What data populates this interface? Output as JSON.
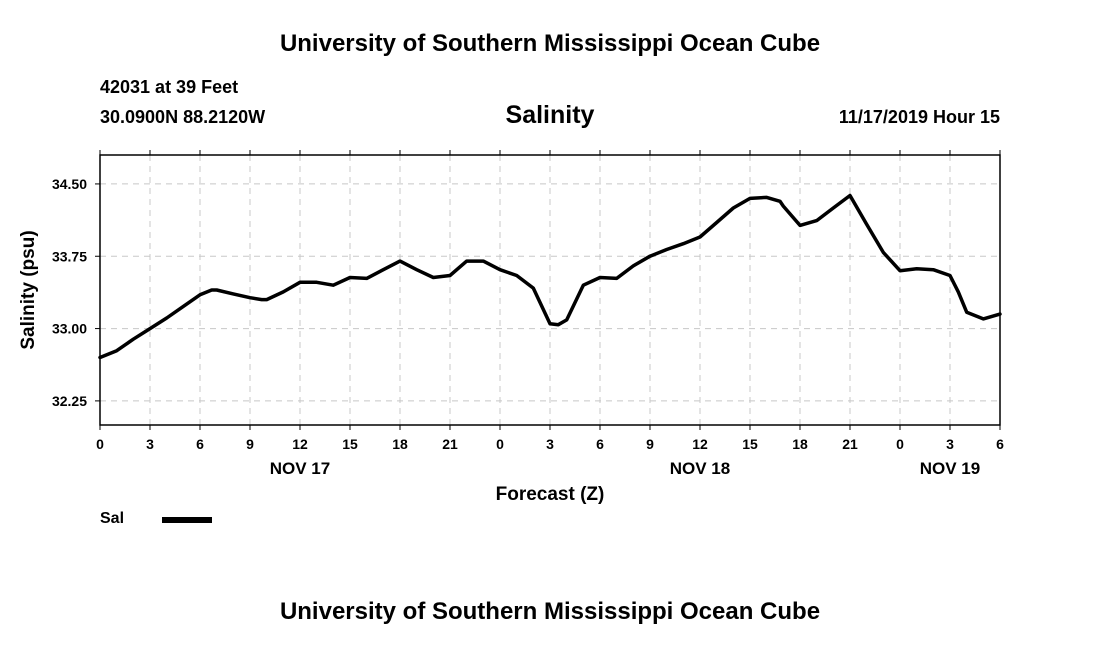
{
  "header": {
    "org_title": "University of Southern Mississippi Ocean Cube",
    "station_label": "42031 at 39 Feet",
    "coordinates": "30.0900N 88.2120W",
    "forecast_time": "11/17/2019 Hour 15"
  },
  "footer": {
    "org_title": "University of Southern Mississippi Ocean Cube"
  },
  "legend": {
    "label": "Sal",
    "color": "#000000"
  },
  "chart_data": {
    "type": "line",
    "title": "Salinity",
    "xlabel": "Forecast (Z)",
    "ylabel": "Salinity (psu)",
    "x_unit": "hours since NOV 17 00Z",
    "xlim": [
      0,
      54
    ],
    "ylim": [
      32.0,
      34.8
    ],
    "grid": true,
    "legend_position": "bottom-left",
    "x_ticks": [
      0,
      3,
      6,
      9,
      12,
      15,
      18,
      21,
      24,
      27,
      30,
      33,
      36,
      39,
      42,
      45,
      48,
      51,
      54
    ],
    "x_tick_labels": [
      "0",
      "3",
      "6",
      "9",
      "12",
      "15",
      "18",
      "21",
      "0",
      "3",
      "6",
      "9",
      "12",
      "15",
      "18",
      "21",
      "0",
      "3",
      "6"
    ],
    "date_labels": [
      {
        "x": 12,
        "label": "NOV 17"
      },
      {
        "x": 36,
        "label": "NOV 18"
      },
      {
        "x": 51,
        "label": "NOV 19"
      }
    ],
    "y_ticks": [
      32.25,
      33.0,
      33.75,
      34.5
    ],
    "y_tick_labels": [
      "32.25",
      "33.00",
      "33.75",
      "34.50"
    ],
    "series": [
      {
        "name": "Sal",
        "color": "#000000",
        "x": [
          0,
          1,
          2,
          3,
          4,
          5,
          6,
          6.7,
          7,
          8,
          9,
          9.7,
          10,
          11,
          12,
          13,
          14,
          15,
          16,
          17,
          18,
          19,
          20,
          21,
          22,
          23,
          24,
          25,
          26,
          27,
          27.5,
          28,
          29,
          30,
          31,
          32,
          33,
          34,
          35,
          36,
          37,
          38,
          39,
          40,
          40.8,
          41,
          42,
          43,
          44,
          45,
          46,
          47,
          48,
          49,
          50,
          51,
          51.5,
          52,
          53,
          54
        ],
        "y": [
          32.7,
          32.77,
          32.89,
          33.0,
          33.11,
          33.23,
          33.35,
          33.4,
          33.4,
          33.36,
          33.32,
          33.3,
          33.3,
          33.38,
          33.48,
          33.48,
          33.45,
          33.53,
          33.52,
          33.61,
          33.7,
          33.61,
          33.53,
          33.55,
          33.7,
          33.7,
          33.61,
          33.55,
          33.42,
          33.05,
          33.04,
          33.09,
          33.45,
          33.53,
          33.52,
          33.65,
          33.75,
          33.82,
          33.88,
          33.95,
          34.1,
          34.25,
          34.35,
          34.36,
          34.32,
          34.27,
          34.07,
          34.12,
          34.25,
          34.38,
          34.08,
          33.79,
          33.6,
          33.62,
          33.61,
          33.55,
          33.38,
          33.17,
          33.1,
          33.15
        ]
      }
    ]
  }
}
